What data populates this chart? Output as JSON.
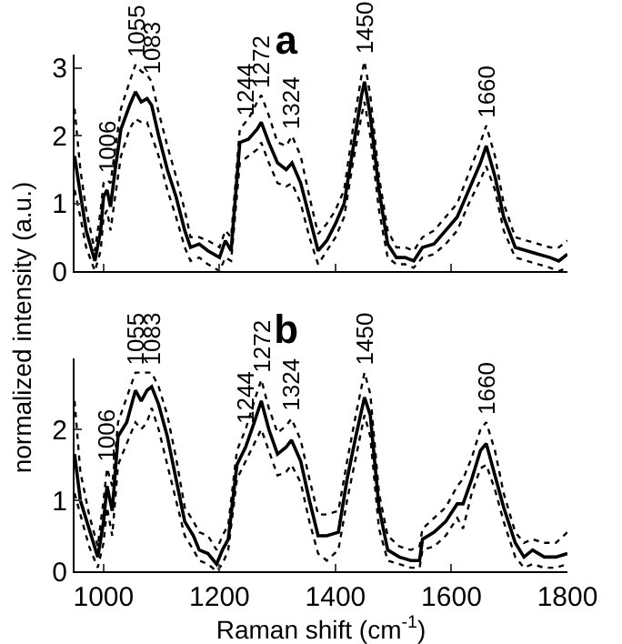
{
  "chart_data": [
    {
      "type": "line",
      "title": "a",
      "ylabel": "normalized intensity (a.u.)",
      "xlim": [
        950,
        1800
      ],
      "xticks": [
        1000,
        1200,
        1400,
        1600,
        1800
      ],
      "ylim": [
        0,
        3.2
      ],
      "yticks": [
        0,
        1,
        2,
        3
      ],
      "tick_labels": "y",
      "grid": false,
      "marker": "none",
      "line_style": "solid",
      "x": [
        950,
        960,
        970,
        985,
        995,
        1000,
        1006,
        1012,
        1020,
        1030,
        1045,
        1055,
        1065,
        1075,
        1083,
        1095,
        1110,
        1125,
        1140,
        1150,
        1165,
        1180,
        1200,
        1210,
        1220,
        1235,
        1250,
        1265,
        1272,
        1285,
        1300,
        1315,
        1325,
        1340,
        1355,
        1370,
        1385,
        1400,
        1415,
        1430,
        1445,
        1450,
        1460,
        1475,
        1490,
        1505,
        1520,
        1535,
        1550,
        1570,
        1590,
        1610,
        1630,
        1650,
        1660,
        1675,
        1690,
        1710,
        1730,
        1750,
        1770,
        1785,
        1800
      ],
      "series": [
        {
          "color": "#000000",
          "line_style": "dotted",
          "values": [
            2.4,
            1.5,
            0.9,
            0.3,
            0.9,
            1.3,
            1.35,
            1.3,
            1.8,
            2.4,
            2.8,
            3.05,
            2.95,
            2.9,
            2.8,
            2.35,
            1.85,
            1.4,
            0.9,
            0.5,
            0.5,
            0.45,
            0.35,
            0.6,
            0.5,
            2.1,
            2.25,
            2.5,
            2.6,
            2.3,
            1.9,
            1.85,
            2.0,
            1.7,
            1.1,
            0.55,
            0.7,
            0.9,
            1.2,
            2.1,
            2.9,
            3.1,
            2.6,
            1.4,
            0.6,
            0.35,
            0.35,
            0.3,
            0.5,
            0.6,
            0.8,
            1.0,
            1.45,
            1.9,
            2.15,
            1.7,
            1.0,
            0.5,
            0.45,
            0.4,
            0.35,
            0.35,
            0.45
          ]
        },
        {
          "color": "#000000",
          "line_style": "dotted",
          "values": [
            1.2,
            0.8,
            0.35,
            0.0,
            0.3,
            0.8,
            0.9,
            0.6,
            1.1,
            1.7,
            2.1,
            2.25,
            2.2,
            2.2,
            2.0,
            1.7,
            1.2,
            0.8,
            0.35,
            0.15,
            0.2,
            0.1,
            0.0,
            0.2,
            0.15,
            1.6,
            1.7,
            1.8,
            1.9,
            1.6,
            1.3,
            1.25,
            1.3,
            1.0,
            0.5,
            0.1,
            0.3,
            0.5,
            0.8,
            1.6,
            2.3,
            2.5,
            2.0,
            0.9,
            0.2,
            0.1,
            0.1,
            0.05,
            0.2,
            0.25,
            0.4,
            0.6,
            1.0,
            1.35,
            1.55,
            1.2,
            0.6,
            0.2,
            0.15,
            0.1,
            0.05,
            0.0,
            0.05
          ]
        },
        {
          "color": "#000000",
          "values": [
            1.7,
            1.14,
            0.6,
            0.15,
            0.6,
            1.1,
            1.2,
            0.95,
            1.5,
            2.1,
            2.45,
            2.65,
            2.5,
            2.55,
            2.45,
            2.0,
            1.5,
            1.1,
            0.6,
            0.35,
            0.4,
            0.3,
            0.2,
            0.45,
            0.3,
            1.9,
            1.95,
            2.1,
            2.2,
            1.9,
            1.6,
            1.5,
            1.6,
            1.3,
            0.8,
            0.3,
            0.45,
            0.7,
            1.0,
            1.8,
            2.6,
            2.8,
            2.3,
            1.2,
            0.4,
            0.2,
            0.2,
            0.15,
            0.35,
            0.4,
            0.6,
            0.8,
            1.2,
            1.6,
            1.85,
            1.4,
            0.8,
            0.35,
            0.3,
            0.25,
            0.2,
            0.15,
            0.25
          ]
        }
      ],
      "annotations": [
        {
          "text": "1006",
          "x": 1006,
          "y": 1.35
        },
        {
          "text": "1055",
          "x": 1055,
          "y": 3.05
        },
        {
          "text": "1083",
          "x": 1083,
          "y": 2.8
        },
        {
          "text": "1244",
          "x": 1244,
          "y": 2.19
        },
        {
          "text": "1272",
          "x": 1272,
          "y": 2.6
        },
        {
          "text": "1324",
          "x": 1324,
          "y": 1.98
        },
        {
          "text": "1450",
          "x": 1450,
          "y": 3.1
        },
        {
          "text": "1660",
          "x": 1660,
          "y": 2.15
        }
      ]
    },
    {
      "type": "line",
      "title": "b",
      "xlabel": "Raman shift (cm$^{-1}$)",
      "xlim": [
        950,
        1800
      ],
      "xticks": [
        1000,
        1200,
        1400,
        1600,
        1800
      ],
      "ylim": [
        0,
        3
      ],
      "yticks": [
        0,
        1,
        2
      ],
      "grid": false,
      "marker": "none",
      "line_style": "solid",
      "x": [
        950,
        960,
        975,
        990,
        1000,
        1006,
        1015,
        1025,
        1040,
        1055,
        1065,
        1075,
        1083,
        1095,
        1110,
        1125,
        1140,
        1155,
        1165,
        1180,
        1195,
        1205,
        1215,
        1230,
        1245,
        1260,
        1272,
        1285,
        1300,
        1315,
        1324,
        1340,
        1355,
        1370,
        1385,
        1405,
        1420,
        1435,
        1450,
        1460,
        1475,
        1490,
        1510,
        1530,
        1545,
        1550,
        1570,
        1590,
        1610,
        1620,
        1635,
        1650,
        1660,
        1675,
        1690,
        1710,
        1725,
        1740,
        1760,
        1780,
        1800
      ],
      "series": [
        {
          "color": "#000000",
          "line_style": "dotted",
          "values": [
            2.4,
            1.4,
            0.8,
            0.35,
            1.0,
            1.45,
            1.2,
            2.1,
            2.45,
            2.8,
            2.8,
            2.8,
            2.8,
            2.6,
            2.2,
            1.6,
            0.9,
            0.7,
            0.55,
            0.5,
            0.3,
            0.5,
            0.65,
            1.7,
            2.0,
            2.4,
            2.7,
            2.3,
            1.95,
            2.05,
            2.15,
            1.85,
            1.3,
            0.8,
            0.8,
            0.85,
            1.55,
            2.2,
            2.8,
            2.5,
            1.1,
            0.5,
            0.35,
            0.3,
            0.35,
            0.6,
            0.75,
            0.9,
            1.2,
            1.3,
            1.6,
            2.0,
            2.1,
            1.7,
            1.1,
            0.55,
            0.4,
            0.45,
            0.4,
            0.4,
            0.55
          ]
        },
        {
          "color": "#000000",
          "line_style": "dotted",
          "values": [
            1.1,
            0.8,
            0.35,
            0.05,
            0.4,
            0.9,
            0.5,
            1.5,
            1.8,
            2.1,
            2.0,
            2.1,
            2.3,
            2.0,
            1.5,
            1.0,
            0.5,
            0.3,
            0.15,
            0.1,
            0.0,
            0.1,
            0.3,
            1.3,
            1.55,
            1.8,
            2.0,
            1.7,
            1.35,
            1.4,
            1.5,
            1.25,
            0.7,
            0.25,
            0.15,
            0.3,
            1.0,
            1.6,
            2.2,
            1.9,
            0.6,
            0.15,
            0.1,
            0.05,
            0.05,
            0.3,
            0.35,
            0.5,
            0.75,
            0.6,
            1.1,
            1.45,
            1.5,
            1.15,
            0.7,
            0.2,
            0.05,
            0.1,
            0.05,
            0.05,
            0.1
          ]
        },
        {
          "color": "#000000",
          "values": [
            1.65,
            1.0,
            0.6,
            0.2,
            0.7,
            1.2,
            0.85,
            1.9,
            2.1,
            2.55,
            2.4,
            2.55,
            2.6,
            2.35,
            1.9,
            1.3,
            0.7,
            0.5,
            0.3,
            0.25,
            0.1,
            0.3,
            0.45,
            1.5,
            1.75,
            2.1,
            2.4,
            2.0,
            1.65,
            1.75,
            1.85,
            1.55,
            1.0,
            0.5,
            0.5,
            0.55,
            1.3,
            1.9,
            2.45,
            2.2,
            0.9,
            0.3,
            0.2,
            0.15,
            0.15,
            0.45,
            0.55,
            0.7,
            0.95,
            0.95,
            1.3,
            1.7,
            1.8,
            1.35,
            0.9,
            0.4,
            0.2,
            0.3,
            0.2,
            0.2,
            0.25
          ]
        }
      ],
      "annotations": [
        {
          "text": "1006",
          "x": 1006,
          "y": 1.45
        },
        {
          "text": "1055",
          "x": 1055,
          "y": 2.8
        },
        {
          "text": "1083",
          "x": 1083,
          "y": 2.8
        },
        {
          "text": "1244",
          "x": 1244,
          "y": 1.98
        },
        {
          "text": "1272",
          "x": 1272,
          "y": 2.7
        },
        {
          "text": "1324",
          "x": 1324,
          "y": 2.15
        },
        {
          "text": "1450",
          "x": 1450,
          "y": 2.8
        },
        {
          "text": "1660",
          "x": 1660,
          "y": 2.1
        }
      ]
    }
  ]
}
